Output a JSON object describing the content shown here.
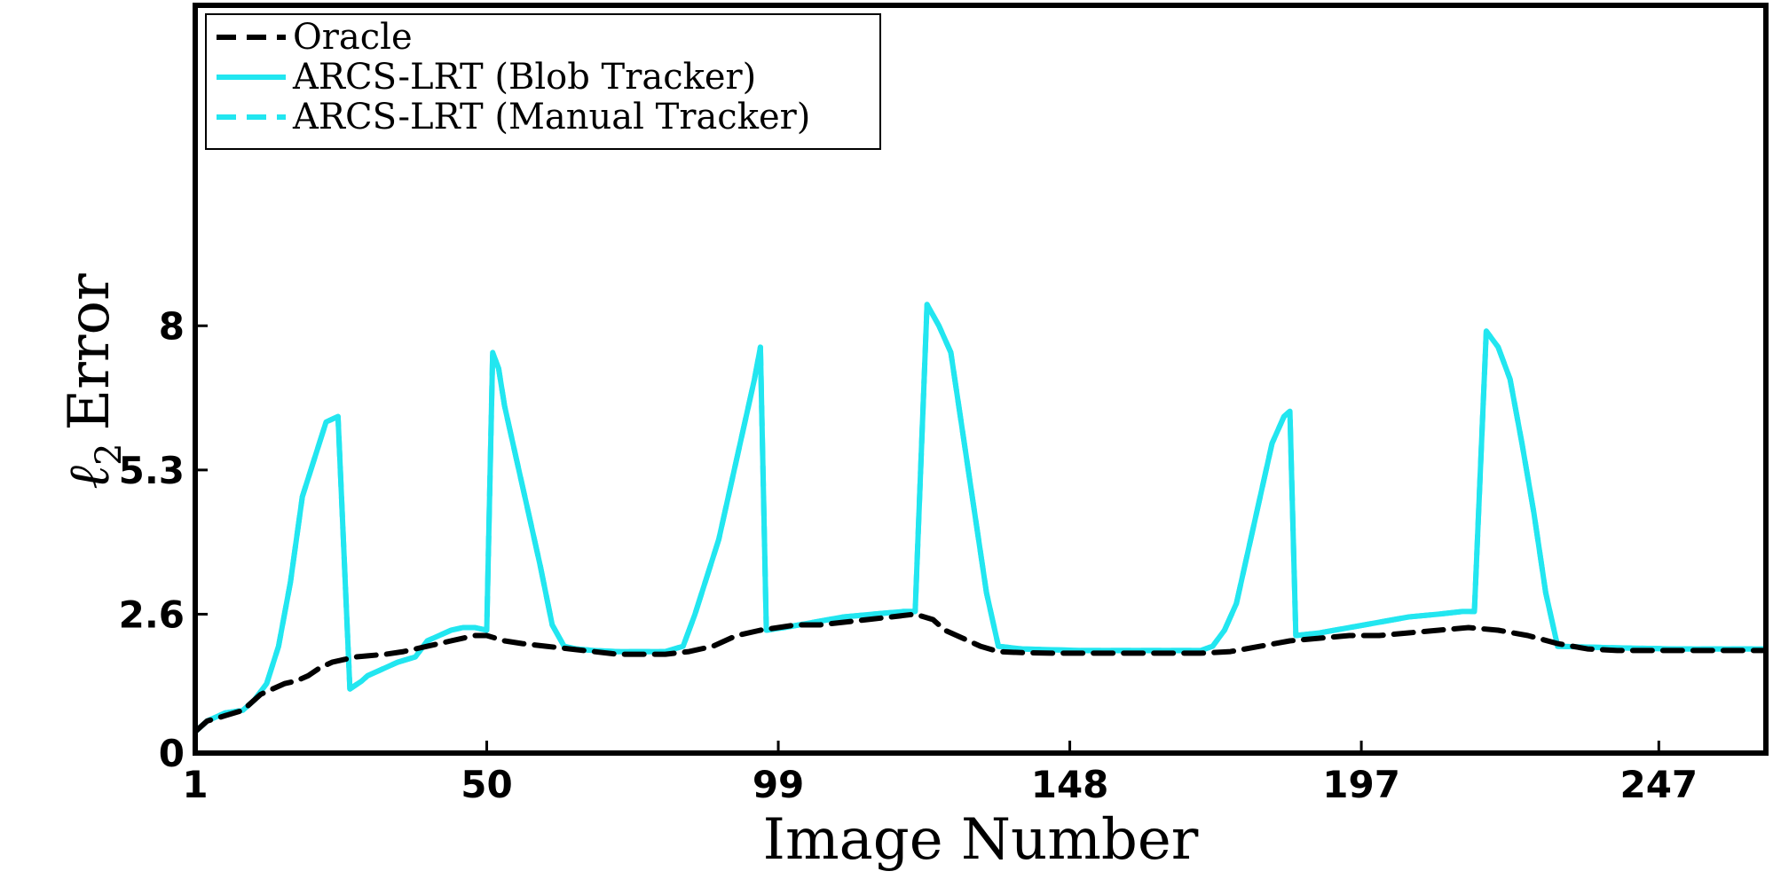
{
  "chart_data": {
    "type": "line",
    "xlabel": "Image Number",
    "ylabel": "Error",
    "ylabel_symbol": "ℓ",
    "ylabel_subscript": "2",
    "xlim": [
      1,
      265
    ],
    "ylim": [
      0,
      14
    ],
    "x_ticks": [
      1,
      50,
      99,
      148,
      197,
      247
    ],
    "x_tick_labels": [
      "1",
      "50",
      "99",
      "148",
      "197",
      "247"
    ],
    "y_ticks": [
      0,
      2.6,
      5.3,
      8
    ],
    "y_tick_labels": [
      "0",
      "2.6",
      "5.3",
      "8"
    ],
    "grid": false,
    "legend_position": "top-left",
    "series": [
      {
        "name": "Oracle",
        "color": "#000000",
        "dash": "dashed",
        "x": [
          1,
          3,
          6,
          9,
          12,
          14,
          16,
          18,
          20,
          22,
          24,
          26,
          28,
          30,
          33,
          36,
          40,
          44,
          48,
          50,
          53,
          56,
          60,
          64,
          68,
          72,
          76,
          80,
          84,
          88,
          92,
          96,
          99,
          102,
          106,
          110,
          114,
          118,
          122,
          125,
          127,
          130,
          133,
          136,
          140,
          145,
          150,
          155,
          160,
          165,
          170,
          175,
          180,
          185,
          190,
          195,
          200,
          205,
          210,
          215,
          220,
          225,
          230,
          235,
          240,
          245,
          250,
          255,
          260,
          265
        ],
        "values": [
          0.4,
          0.6,
          0.7,
          0.8,
          1.1,
          1.2,
          1.3,
          1.35,
          1.45,
          1.6,
          1.7,
          1.75,
          1.8,
          1.82,
          1.85,
          1.9,
          2.0,
          2.1,
          2.2,
          2.2,
          2.1,
          2.05,
          2.0,
          1.95,
          1.9,
          1.85,
          1.85,
          1.85,
          1.9,
          2.0,
          2.2,
          2.3,
          2.35,
          2.4,
          2.4,
          2.45,
          2.5,
          2.55,
          2.6,
          2.5,
          2.3,
          2.15,
          2.0,
          1.9,
          1.88,
          1.87,
          1.87,
          1.87,
          1.87,
          1.87,
          1.87,
          1.9,
          2.0,
          2.1,
          2.15,
          2.2,
          2.2,
          2.25,
          2.3,
          2.35,
          2.3,
          2.2,
          2.05,
          1.95,
          1.92,
          1.92,
          1.92,
          1.92,
          1.92,
          1.92
        ]
      },
      {
        "name": "ARCS-LRT (Blob Tracker)",
        "color": "#22e6f0",
        "dash": "solid",
        "x": [
          1,
          3,
          6,
          9,
          11,
          13,
          15,
          17,
          19,
          21,
          23,
          25,
          27,
          29,
          30,
          32,
          35,
          38,
          40,
          42,
          44,
          46,
          48,
          50,
          51,
          52,
          53,
          55,
          57,
          59,
          61,
          63,
          65,
          68,
          72,
          76,
          80,
          83,
          85,
          87,
          89,
          91,
          93,
          95,
          96,
          97,
          100,
          105,
          110,
          115,
          120,
          122,
          124,
          126,
          128,
          130,
          132,
          134,
          136,
          140,
          150,
          160,
          170,
          172,
          174,
          176,
          178,
          180,
          182,
          184,
          185,
          186,
          190,
          195,
          200,
          205,
          210,
          214,
          216,
          218,
          220,
          222,
          224,
          226,
          228,
          230,
          240,
          250,
          260,
          265
        ],
        "values": [
          0.4,
          0.6,
          0.75,
          0.8,
          1.0,
          1.3,
          2.0,
          3.2,
          4.8,
          5.5,
          6.2,
          6.3,
          1.2,
          1.35,
          1.45,
          1.55,
          1.7,
          1.8,
          2.1,
          2.2,
          2.3,
          2.35,
          2.35,
          2.3,
          7.5,
          7.2,
          6.5,
          5.5,
          4.5,
          3.5,
          2.4,
          2.0,
          1.95,
          1.92,
          1.9,
          1.9,
          1.9,
          2.0,
          2.6,
          3.3,
          4.0,
          5.0,
          6.0,
          7.0,
          7.6,
          2.3,
          2.35,
          2.45,
          2.55,
          2.6,
          2.65,
          2.65,
          8.4,
          8.0,
          7.5,
          6.0,
          4.5,
          3.0,
          2.0,
          1.95,
          1.92,
          1.92,
          1.92,
          2.0,
          2.3,
          2.8,
          3.8,
          4.8,
          5.8,
          6.3,
          6.4,
          2.2,
          2.25,
          2.35,
          2.45,
          2.55,
          2.6,
          2.65,
          2.65,
          7.9,
          7.6,
          7.0,
          5.8,
          4.5,
          3.0,
          2.0,
          1.97,
          1.95,
          1.95,
          1.95
        ]
      },
      {
        "name": "ARCS-LRT (Manual Tracker)",
        "color": "#22e6f0",
        "dash": "dashed",
        "x": [
          1,
          3,
          6,
          9,
          11,
          13,
          15,
          17,
          19,
          21,
          23,
          25,
          27,
          29,
          30,
          32,
          35,
          38,
          40,
          42,
          44,
          46,
          48,
          50,
          51,
          52,
          53,
          55,
          57,
          59,
          61,
          63,
          65,
          68,
          72,
          76,
          80,
          83,
          85,
          87,
          89,
          91,
          93,
          95,
          96,
          97,
          100,
          105,
          110,
          115,
          120,
          122,
          124,
          126,
          128,
          130,
          132,
          134,
          136,
          140,
          150,
          160,
          170,
          172,
          174,
          176,
          178,
          180,
          182,
          184,
          185,
          186,
          190,
          195,
          200,
          205,
          210,
          214,
          216,
          218,
          220,
          222,
          224,
          226,
          228,
          230,
          240,
          250,
          260,
          265
        ],
        "values": [
          0.4,
          0.6,
          0.75,
          0.8,
          1.0,
          1.3,
          2.0,
          3.2,
          4.8,
          5.5,
          6.2,
          6.3,
          1.2,
          1.35,
          1.45,
          1.55,
          1.7,
          1.8,
          2.1,
          2.2,
          2.3,
          2.35,
          2.35,
          2.3,
          7.5,
          7.2,
          6.5,
          5.5,
          4.5,
          3.5,
          2.4,
          2.0,
          1.95,
          1.92,
          1.9,
          1.9,
          1.9,
          2.0,
          2.6,
          3.3,
          4.0,
          5.0,
          6.0,
          7.0,
          7.6,
          2.3,
          2.35,
          2.45,
          2.55,
          2.6,
          2.65,
          2.65,
          8.4,
          8.0,
          7.5,
          6.0,
          4.5,
          3.0,
          2.0,
          1.95,
          1.92,
          1.92,
          1.92,
          2.0,
          2.3,
          2.8,
          3.8,
          4.8,
          5.8,
          6.3,
          6.4,
          2.2,
          2.25,
          2.35,
          2.45,
          2.55,
          2.6,
          2.65,
          2.65,
          7.9,
          7.6,
          7.0,
          5.8,
          4.5,
          3.0,
          2.0,
          1.97,
          1.95,
          1.95,
          1.95
        ]
      }
    ]
  }
}
